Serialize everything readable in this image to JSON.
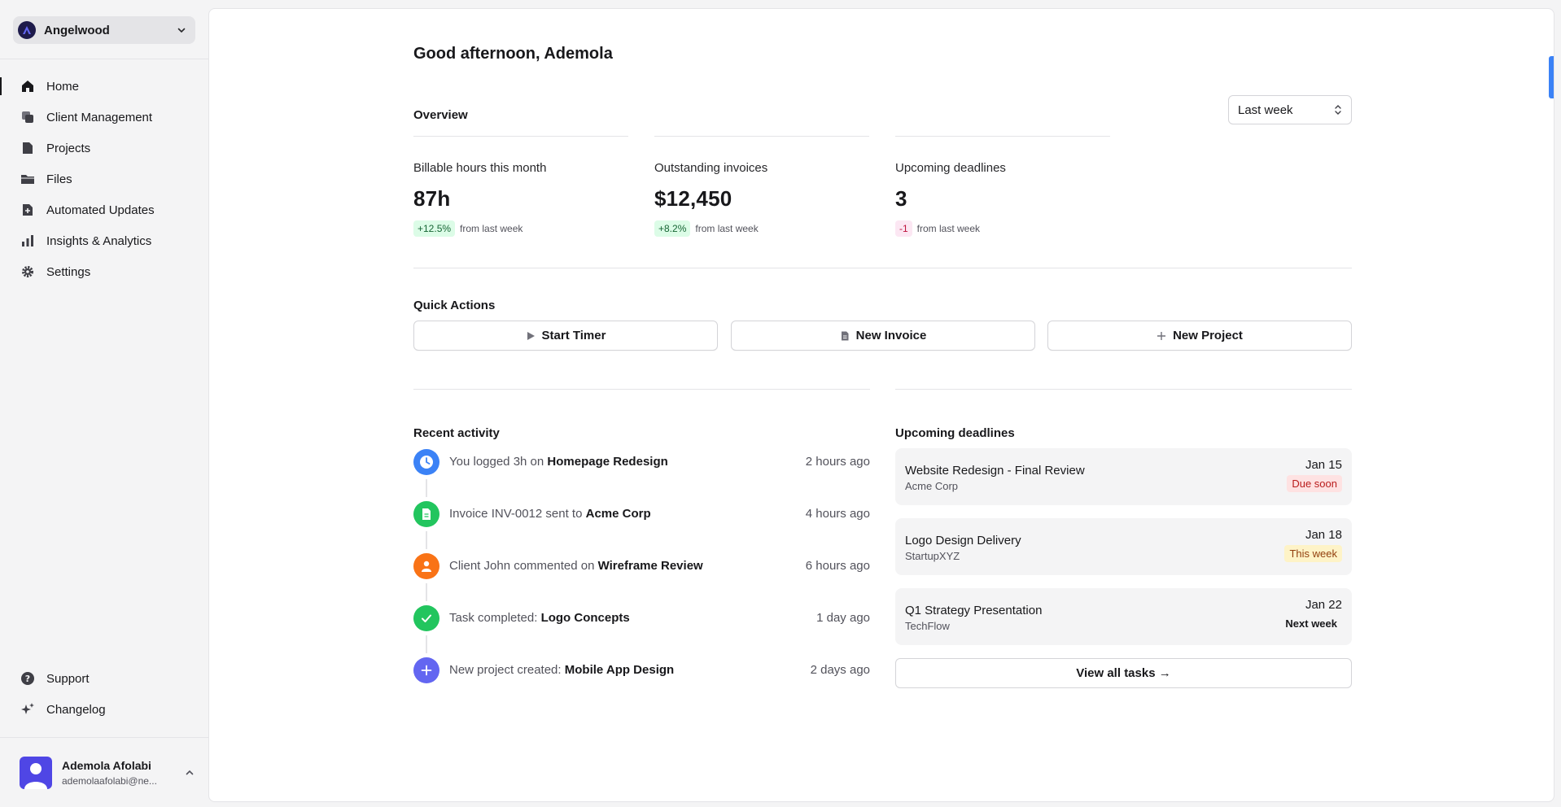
{
  "workspace": {
    "name": "Angelwood"
  },
  "sidebar": {
    "items": [
      {
        "label": "Home",
        "icon": "home-icon",
        "active": true
      },
      {
        "label": "Client Management",
        "icon": "clients-icon"
      },
      {
        "label": "Projects",
        "icon": "projects-icon"
      },
      {
        "label": "Files",
        "icon": "folder-icon"
      },
      {
        "label": "Automated Updates",
        "icon": "auto-update-icon"
      },
      {
        "label": "Insights & Analytics",
        "icon": "bar-chart-icon"
      },
      {
        "label": "Settings",
        "icon": "gear-icon"
      }
    ],
    "bottom_items": [
      {
        "label": "Support",
        "icon": "help-icon"
      },
      {
        "label": "Changelog",
        "icon": "sparkles-icon"
      }
    ]
  },
  "user": {
    "name": "Ademola Afolabi",
    "email": "ademolaafolabi@ne..."
  },
  "header": {
    "greeting": "Good afternoon, Ademola"
  },
  "overview": {
    "title": "Overview",
    "period": "Last week",
    "stats": [
      {
        "label": "Billable hours this month",
        "value": "87h",
        "change": "+12.5%",
        "change_note": "from last week",
        "trend": "up"
      },
      {
        "label": "Outstanding invoices",
        "value": "$12,450",
        "change": "+8.2%",
        "change_note": "from last week",
        "trend": "up"
      },
      {
        "label": "Upcoming deadlines",
        "value": "3",
        "change": "-1",
        "change_note": "from last week",
        "trend": "down"
      }
    ]
  },
  "quick_actions": {
    "title": "Quick Actions",
    "buttons": [
      {
        "label": "Start Timer",
        "icon": "play-icon"
      },
      {
        "label": "New Invoice",
        "icon": "document-icon"
      },
      {
        "label": "New Project",
        "icon": "plus-icon"
      }
    ]
  },
  "recent_activity": {
    "title": "Recent activity",
    "items": [
      {
        "prefix": "You logged 3h on",
        "target": "Homepage Redesign",
        "time": "2 hours ago",
        "icon": "clock-icon",
        "color": "#3b82f6"
      },
      {
        "prefix": "Invoice INV-0012 sent to",
        "target": "Acme Corp",
        "time": "4 hours ago",
        "icon": "invoice-icon",
        "color": "#22c55e"
      },
      {
        "prefix": "Client John commented on",
        "target": "Wireframe Review",
        "time": "6 hours ago",
        "icon": "user-icon",
        "color": "#f97316"
      },
      {
        "prefix": "Task completed:",
        "target": "Logo Concepts",
        "time": "1 day ago",
        "icon": "check-icon",
        "color": "#22c55e"
      },
      {
        "prefix": "New project created:",
        "target": "Mobile App Design",
        "time": "2 days ago",
        "icon": "plus-icon",
        "color": "#6366f1"
      }
    ]
  },
  "upcoming_deadlines": {
    "title": "Upcoming deadlines",
    "items": [
      {
        "title": "Website Redesign - Final Review",
        "client": "Acme Corp",
        "date": "Jan 15",
        "status": "Due soon",
        "status_type": "soon"
      },
      {
        "title": "Logo Design Delivery",
        "client": "StartupXYZ",
        "date": "Jan 18",
        "status": "This week",
        "status_type": "week"
      },
      {
        "title": "Q1 Strategy Presentation",
        "client": "TechFlow",
        "date": "Jan 22",
        "status": "Next week",
        "status_type": "next"
      }
    ],
    "view_all": "View all tasks →"
  }
}
